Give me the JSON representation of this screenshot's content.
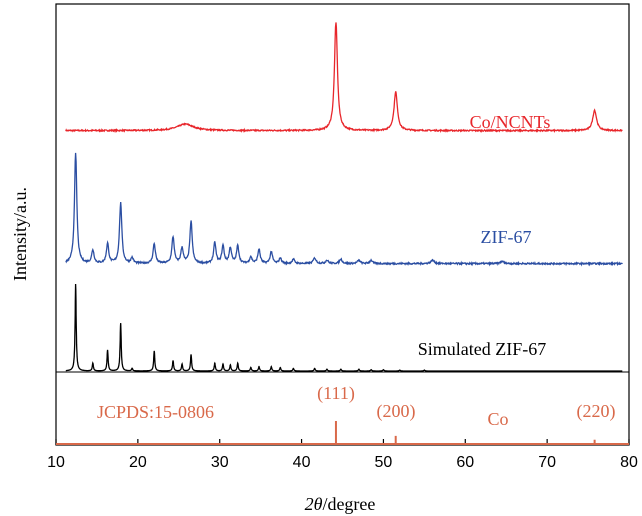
{
  "chart_data": {
    "type": "line",
    "title": "",
    "xlabel_symbol": "2θ",
    "xlabel_unit": "/degree",
    "ylabel": "Intensity/a.u.",
    "xlim": [
      10,
      80
    ],
    "xticks": [
      "10",
      "20",
      "30",
      "40",
      "50",
      "60",
      "70",
      "80"
    ],
    "grid": false,
    "series": [
      {
        "name": "Co/NCNTs",
        "color": "#e8262b",
        "baseline": 0.05,
        "noise": 0.012,
        "peaks": [
          [
            25.8,
            0.06,
            1.2
          ],
          [
            44.2,
            1.0,
            0.22
          ],
          [
            51.5,
            0.36,
            0.25
          ],
          [
            75.8,
            0.19,
            0.28
          ]
        ]
      },
      {
        "name": "ZIF-67",
        "color": "#2b4ea2",
        "baseline": 0.04,
        "noise": 0.014,
        "peaks": [
          [
            12.4,
            1.0,
            0.17
          ],
          [
            14.5,
            0.12,
            0.17
          ],
          [
            16.3,
            0.18,
            0.17
          ],
          [
            17.9,
            0.55,
            0.17
          ],
          [
            19.3,
            0.05,
            0.17
          ],
          [
            22.0,
            0.18,
            0.17
          ],
          [
            24.3,
            0.24,
            0.17
          ],
          [
            25.4,
            0.14,
            0.17
          ],
          [
            26.5,
            0.38,
            0.17
          ],
          [
            29.4,
            0.19,
            0.17
          ],
          [
            30.4,
            0.16,
            0.17
          ],
          [
            31.3,
            0.14,
            0.17
          ],
          [
            32.2,
            0.16,
            0.17
          ],
          [
            33.8,
            0.06,
            0.17
          ],
          [
            34.8,
            0.13,
            0.17
          ],
          [
            36.3,
            0.11,
            0.17
          ],
          [
            37.4,
            0.05,
            0.17
          ],
          [
            39.0,
            0.04,
            0.17
          ],
          [
            41.6,
            0.05,
            0.2
          ],
          [
            43.1,
            0.03,
            0.2
          ],
          [
            44.8,
            0.04,
            0.2
          ],
          [
            47.0,
            0.03,
            0.2
          ],
          [
            48.5,
            0.03,
            0.2
          ],
          [
            56.0,
            0.03,
            0.25
          ],
          [
            64.5,
            0.02,
            0.25
          ]
        ]
      },
      {
        "name": "Simulated ZIF-67",
        "color": "#000000",
        "baseline": 0.0,
        "noise": 0.0,
        "peaks": [
          [
            12.4,
            1.0,
            0.08
          ],
          [
            14.5,
            0.09,
            0.08
          ],
          [
            16.3,
            0.24,
            0.08
          ],
          [
            17.9,
            0.55,
            0.08
          ],
          [
            19.3,
            0.03,
            0.08
          ],
          [
            22.0,
            0.23,
            0.08
          ],
          [
            24.3,
            0.12,
            0.08
          ],
          [
            25.4,
            0.08,
            0.08
          ],
          [
            26.5,
            0.19,
            0.08
          ],
          [
            29.4,
            0.09,
            0.08
          ],
          [
            30.4,
            0.08,
            0.08
          ],
          [
            31.3,
            0.07,
            0.08
          ],
          [
            32.2,
            0.09,
            0.08
          ],
          [
            33.8,
            0.04,
            0.08
          ],
          [
            34.8,
            0.05,
            0.08
          ],
          [
            36.3,
            0.05,
            0.08
          ],
          [
            37.4,
            0.04,
            0.08
          ],
          [
            39.0,
            0.03,
            0.08
          ],
          [
            41.6,
            0.03,
            0.08
          ],
          [
            43.1,
            0.02,
            0.08
          ],
          [
            44.8,
            0.02,
            0.08
          ],
          [
            47.0,
            0.02,
            0.08
          ],
          [
            48.5,
            0.015,
            0.08
          ],
          [
            50.0,
            0.015,
            0.08
          ],
          [
            52.0,
            0.01,
            0.08
          ],
          [
            55.0,
            0.01,
            0.08
          ]
        ]
      }
    ],
    "reference": {
      "name": "JCPDS:15-0806",
      "phase": "Co",
      "color": "#d9694a",
      "lines": [
        {
          "x": 44.2,
          "rel": 1.0,
          "hkl": "(111)"
        },
        {
          "x": 51.5,
          "rel": 0.38,
          "hkl": "(200)"
        },
        {
          "x": 75.8,
          "rel": 0.22,
          "hkl": "(220)"
        }
      ]
    }
  }
}
